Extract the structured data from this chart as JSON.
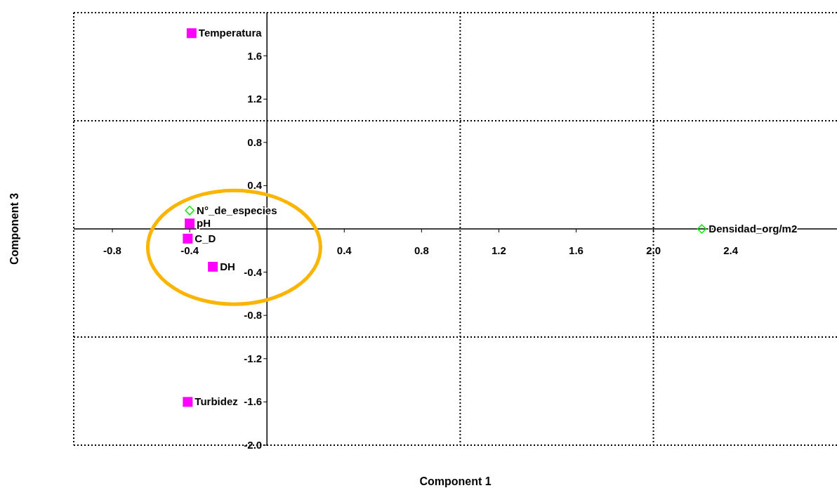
{
  "chart_data": {
    "type": "scatter",
    "xlabel": "Component 1",
    "ylabel": "Component 3",
    "xlim": [
      -1.0,
      2.95
    ],
    "ylim": [
      -2.0,
      2.0
    ],
    "xticks": [
      -0.8,
      -0.4,
      0.4,
      0.8,
      1.2,
      1.6,
      {
        "value": 2,
        "label": "2.0"
      },
      2.4
    ],
    "yticks": [
      1.6,
      1.2,
      0.8,
      0.4,
      -0.4,
      -0.8,
      -1.2,
      -1.6,
      {
        "value": -2,
        "label": "-2.0"
      }
    ],
    "series": [
      {
        "type": "scatter",
        "color": "#ff00ff",
        "marker": "square",
        "x": [
          -0.39,
          -0.4,
          -0.41,
          -0.28,
          -0.41
        ],
        "values": [
          1.81,
          0.05,
          -0.09,
          -0.35,
          -1.6
        ]
      },
      {
        "type": "scatter",
        "color": "#00ee00",
        "marker": "diamond",
        "x": [
          -0.4,
          2.25
        ],
        "values": [
          0.17,
          0.0
        ]
      }
    ],
    "annotations": [
      {
        "text": "Temperatura",
        "x": -0.39,
        "y": 1.81
      },
      {
        "text": "pH",
        "x": -0.4,
        "y": 0.05
      },
      {
        "text": "C_D",
        "x": -0.41,
        "y": -0.09
      },
      {
        "text": "DH",
        "x": -0.28,
        "y": -0.35
      },
      {
        "text": "Turbidez",
        "x": -0.41,
        "y": -1.6
      },
      {
        "text": "N°_de_especies",
        "x": -0.4,
        "y": 0.17
      },
      {
        "text": "Densidad_org/m2",
        "x": 2.25,
        "y": 0.0
      }
    ],
    "ref_lines": [
      {
        "axis": "x",
        "value": 1.0,
        "color": "#000000",
        "line_style": "dotted"
      },
      {
        "axis": "x",
        "value": 2.0,
        "color": "#000000",
        "line_style": "dotted"
      },
      {
        "axis": "y",
        "value": 1.0,
        "color": "#000000",
        "line_style": "dotted"
      },
      {
        "axis": "y",
        "value": -1.0,
        "color": "#000000",
        "line_style": "dotted"
      }
    ]
  }
}
